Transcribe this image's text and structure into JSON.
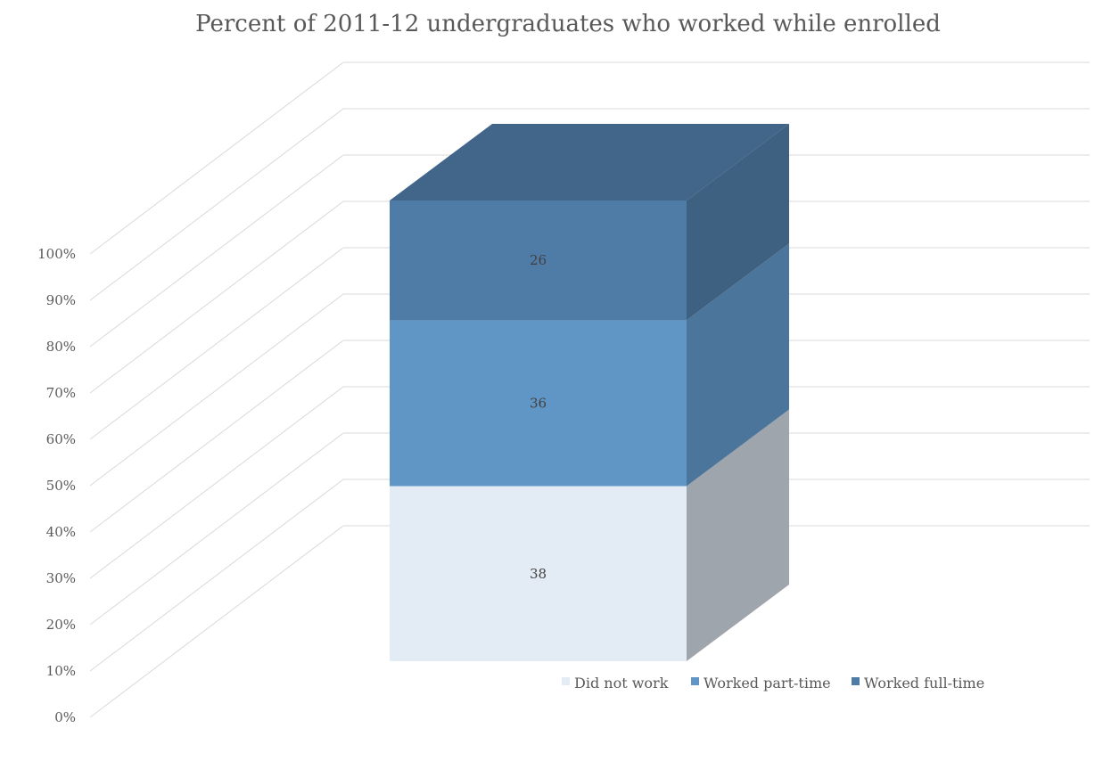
{
  "chart_data": {
    "type": "bar",
    "stacked": true,
    "three_d": true,
    "title": "Percent of 2011-12 undergraduates who worked while enrolled",
    "xlabel": "",
    "ylabel": "",
    "ylim": [
      0,
      100
    ],
    "y_ticks": [
      "0%",
      "10%",
      "20%",
      "30%",
      "40%",
      "50%",
      "60%",
      "70%",
      "80%",
      "90%",
      "100%"
    ],
    "categories": [
      ""
    ],
    "series": [
      {
        "name": "Did not work",
        "values": [
          38
        ],
        "color": "#e3ebf5",
        "labels": [
          "38"
        ]
      },
      {
        "name": "Worked part-time",
        "values": [
          36
        ],
        "color": "#6096c6",
        "labels": [
          "36"
        ]
      },
      {
        "name": "Worked full-time",
        "values": [
          26
        ],
        "color": "#4f7ca7",
        "labels": [
          "26"
        ]
      }
    ],
    "grid": true,
    "legend_position": "bottom"
  }
}
